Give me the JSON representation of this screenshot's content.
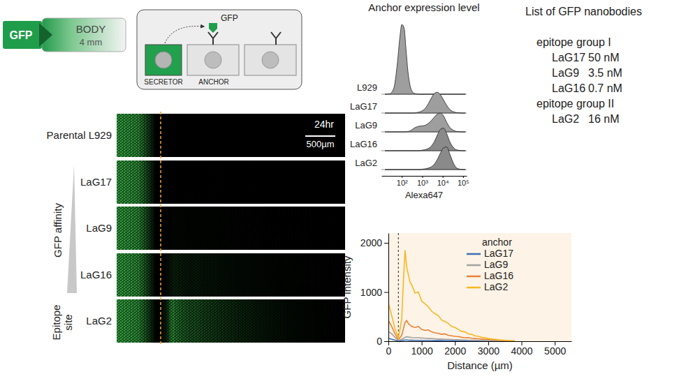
{
  "schematic": {
    "source": "GFP",
    "body": "BODY",
    "body_size": "4 mm",
    "secreted": "GFP",
    "secretor": "SECRETOR",
    "anchor": "ANCHOR"
  },
  "images": {
    "rows": [
      "Parental L929",
      "LaG17",
      "LaG9",
      "LaG16",
      "LaG2"
    ],
    "time": "24hr",
    "scale_bar": {
      "value": 500,
      "label": "500µm"
    },
    "affinity_label": "GFP affinity",
    "epitope_label": "Epitope site"
  },
  "nanobody_list": {
    "title": "List of GFP nanobodies",
    "groups": [
      {
        "name": "epitope group I",
        "items": [
          {
            "name": "LaG17",
            "kd": "50 nM"
          },
          {
            "name": "LaG9",
            "kd": "3.5 nM"
          },
          {
            "name": "LaG16",
            "kd": "0.7 nM"
          }
        ]
      },
      {
        "name": "epitope group II",
        "items": [
          {
            "name": "LaG2",
            "kd": "16 nM"
          }
        ]
      }
    ]
  },
  "chart_data": [
    {
      "type": "ridgeline",
      "title": "Anchor expression level",
      "x_label": "Alexa647",
      "log": "x",
      "tick_labels": "x",
      "xlim": [
        10,
        150000
      ],
      "xticks": [
        {
          "value": 100,
          "label": "10²"
        },
        {
          "value": 1000,
          "label": "10³"
        },
        {
          "value": 10000,
          "label": "10⁴"
        },
        {
          "value": 100000,
          "label": "10⁵"
        }
      ],
      "ylim": [
        0,
        4
      ],
      "x": [
        15,
        25,
        40,
        60,
        80,
        100,
        130,
        160,
        200,
        250,
        320,
        400,
        500,
        700,
        1000,
        1400,
        2000,
        2800,
        4000,
        5600,
        8000,
        11000,
        16000,
        22000,
        32000,
        45000,
        64000,
        90000,
        130000
      ],
      "series": [
        {
          "name": "L929",
          "color": "#9e9e9e",
          "values": [
            0,
            0.02,
            0.3,
            1.6,
            3.0,
            3.7,
            3.5,
            2.4,
            1.2,
            0.5,
            0.15,
            0.05,
            0.02,
            0,
            0,
            0,
            0,
            0,
            0,
            0,
            0,
            0,
            0,
            0,
            0,
            0,
            0,
            0,
            0
          ]
        },
        {
          "name": "LaG17",
          "color": "#9e9e9e",
          "values": [
            0,
            0,
            0,
            0,
            0,
            0,
            0,
            0,
            0,
            0,
            0,
            0,
            0.02,
            0.05,
            0.12,
            0.25,
            0.5,
            0.8,
            1.05,
            1.1,
            0.95,
            0.7,
            0.4,
            0.2,
            0.08,
            0.03,
            0.01,
            0,
            0
          ]
        },
        {
          "name": "LaG9",
          "color": "#9e9e9e",
          "values": [
            0,
            0,
            0,
            0,
            0,
            0,
            0,
            0,
            0.02,
            0.05,
            0.12,
            0.2,
            0.25,
            0.3,
            0.32,
            0.35,
            0.45,
            0.6,
            0.8,
            0.95,
            1.0,
            0.85,
            0.5,
            0.25,
            0.1,
            0.03,
            0.01,
            0,
            0
          ]
        },
        {
          "name": "LaG16",
          "color": "#8a8a8a",
          "values": [
            0,
            0,
            0,
            0,
            0,
            0,
            0,
            0,
            0,
            0,
            0,
            0,
            0,
            0,
            0.03,
            0.06,
            0.12,
            0.25,
            0.5,
            0.85,
            1.15,
            1.2,
            0.9,
            0.5,
            0.2,
            0.06,
            0.02,
            0,
            0
          ]
        },
        {
          "name": "LaG2",
          "color": "#8a8a8a",
          "values": [
            0,
            0,
            0,
            0,
            0,
            0,
            0,
            0,
            0,
            0,
            0,
            0,
            0,
            0,
            0.02,
            0.04,
            0.08,
            0.15,
            0.3,
            0.55,
            0.9,
            1.15,
            1.2,
            0.85,
            0.4,
            0.12,
            0.03,
            0.01,
            0
          ]
        }
      ]
    },
    {
      "type": "line",
      "x_label": "Distance (µm)",
      "y_label": "GFP intensity",
      "xlim": [
        0,
        5500
      ],
      "xticks": [
        0,
        1000,
        2000,
        3000,
        4000,
        5000
      ],
      "ylim": [
        0,
        2200
      ],
      "yticks": [
        0,
        1000,
        2000
      ],
      "legend": "top-right",
      "legend_title": "anchor",
      "reference_line_x": 300,
      "x": [
        0,
        100,
        200,
        300,
        400,
        450,
        500,
        550,
        600,
        650,
        700,
        800,
        900,
        1000,
        1100,
        1200,
        1300,
        1400,
        1500,
        1600,
        1700,
        1800,
        1900,
        2000,
        2100,
        2200,
        2300,
        2400,
        2500,
        2600,
        2700,
        2800,
        2900,
        3000,
        3100,
        3200,
        3300,
        3400,
        3500,
        3600,
        3700,
        3800
      ],
      "series": [
        {
          "name": "LaG17",
          "color": "#3b6fb6",
          "values": [
            60,
            40,
            20,
            5,
            15,
            20,
            25,
            25,
            22,
            20,
            20,
            18,
            18,
            15,
            15,
            15,
            14,
            12,
            12,
            12,
            10,
            10,
            10,
            10,
            9,
            8,
            8,
            8,
            7,
            7,
            6,
            6,
            5,
            5,
            5,
            4,
            4,
            4,
            3,
            3,
            2,
            2
          ]
        },
        {
          "name": "LaG9",
          "color": "#a3a3a3",
          "values": [
            200,
            150,
            80,
            15,
            40,
            60,
            80,
            90,
            85,
            80,
            75,
            70,
            70,
            65,
            60,
            55,
            55,
            50,
            45,
            45,
            40,
            40,
            35,
            30,
            30,
            28,
            25,
            22,
            20,
            20,
            18,
            15,
            15,
            12,
            10,
            10,
            8,
            8,
            6,
            5,
            5,
            3
          ]
        },
        {
          "name": "LaG16",
          "color": "#e8833a",
          "values": [
            420,
            300,
            150,
            30,
            120,
            250,
            380,
            420,
            360,
            330,
            300,
            280,
            300,
            240,
            220,
            230,
            190,
            170,
            160,
            140,
            150,
            120,
            110,
            100,
            95,
            80,
            70,
            75,
            60,
            55,
            50,
            45,
            40,
            35,
            30,
            25,
            20,
            18,
            15,
            10,
            8,
            5
          ]
        },
        {
          "name": "LaG2",
          "color": "#f6b924",
          "values": [
            780,
            520,
            250,
            60,
            450,
            1200,
            1850,
            1500,
            1350,
            1200,
            1150,
            980,
            1000,
            820,
            760,
            700,
            610,
            560,
            520,
            430,
            400,
            360,
            300,
            280,
            240,
            200,
            190,
            150,
            140,
            110,
            100,
            80,
            70,
            55,
            45,
            40,
            30,
            25,
            20,
            15,
            10,
            5
          ]
        }
      ]
    }
  ]
}
